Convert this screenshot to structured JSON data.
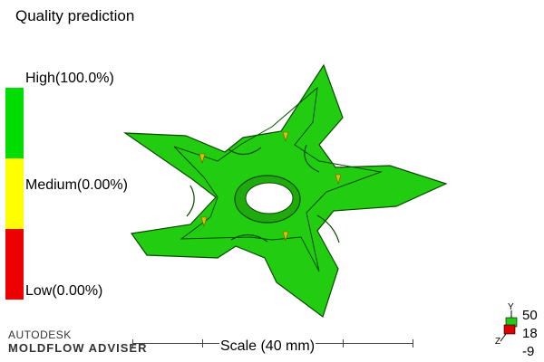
{
  "title": "Quality prediction",
  "legend": {
    "high_label": "High(100.0%)",
    "medium_label": "Medium(0.00%)",
    "low_label": "Low(0.00%)",
    "colors": {
      "high": "#00dd00",
      "medium": "#ffff00",
      "low": "#ee0000"
    }
  },
  "model": {
    "color": "#22cc11",
    "edge_color": "#0a4a00",
    "gate_color": "#e0c000"
  },
  "branding": {
    "line1": "AUTODESK",
    "line2": "MOLDFLOW ADVISER"
  },
  "scale": {
    "label": "Scale (40 mm)"
  },
  "orientation": {
    "axis_y": "Y",
    "axis_z": "Z",
    "rotations": [
      "50",
      "18",
      "-9"
    ]
  }
}
